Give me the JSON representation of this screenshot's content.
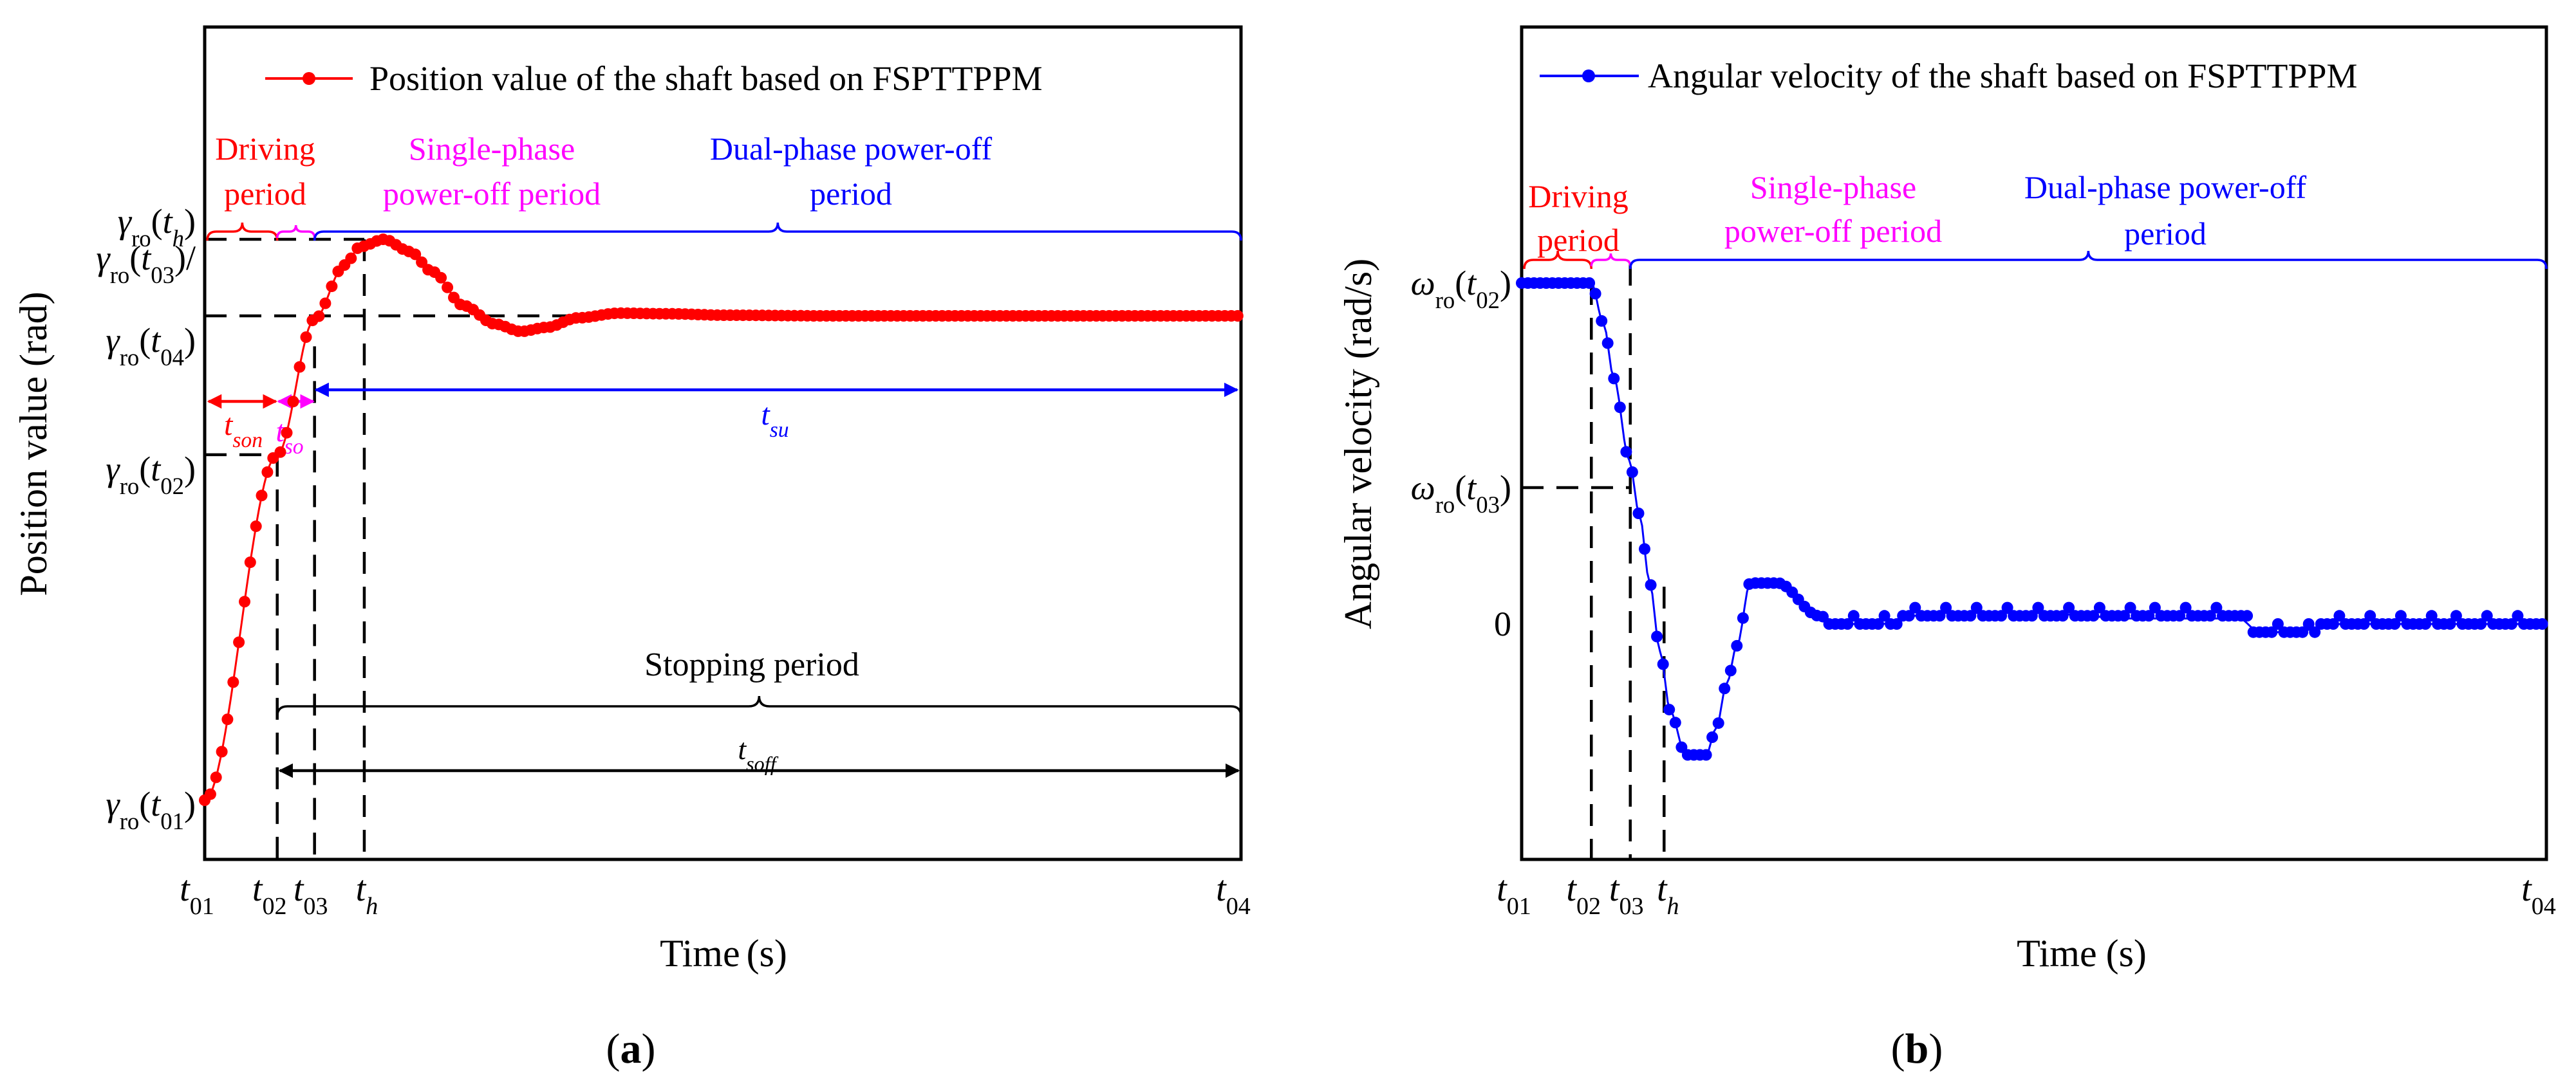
{
  "chart_data": [
    {
      "type": "line",
      "panel_label": "(a)",
      "panel_letter": "a",
      "xlabel": "Time",
      "xunit": "(s)",
      "ylabel": "Position value (rad)",
      "x_ticks": [
        "t01",
        "t02",
        "t03",
        "th",
        "t04"
      ],
      "y_ticks": [
        "γro(th)",
        "γro(t03)/",
        "γro(t04)",
        "γro(t02)",
        "γro(t01)"
      ],
      "xlim": [
        0,
        100
      ],
      "ylim": [
        0,
        100
      ],
      "legend": "Position value of the shaft based on FSPTTPPM",
      "series": [
        {
          "name": "Position value of the shaft based on FSPTTPPM",
          "color": "#ff0000",
          "x": [
            0,
            7,
            10.6,
            13.5,
            15,
            17.3,
            19.8,
            22,
            25,
            28,
            30.5,
            33,
            36,
            40,
            45,
            50,
            60,
            70,
            80,
            90,
            100
          ],
          "y": [
            7,
            58,
            78,
            86,
            88.7,
            89.8,
            88,
            85,
            80,
            77.3,
            76.2,
            76.8,
            78.2,
            78.9,
            78.8,
            78.6,
            78.5,
            78.5,
            78.5,
            78.5,
            78.5
          ]
        }
      ],
      "markers": {
        "t01": 0,
        "t02": 7,
        "t03": 10.6,
        "th": 15.4,
        "t04": 100,
        "gamma_th": 89.8,
        "gamma_t04": 78.5,
        "gamma_t02": 58,
        "gamma_t01": 7
      },
      "periods": [
        {
          "line1": "Driving",
          "line2": "period",
          "color": "#ff0000"
        },
        {
          "line1": "Single-phase",
          "line2": "power-off period",
          "color": "#ff00ff"
        },
        {
          "line1": "Dual-phase power-off",
          "line2": "period",
          "color": "#0000ff"
        }
      ],
      "time_spans": [
        {
          "label": "tson",
          "color": "#ff0000"
        },
        {
          "label": "tso",
          "color": "#ff00ff"
        },
        {
          "label": "tsu",
          "color": "#0000ff"
        }
      ],
      "stopping": {
        "label": "Stopping period",
        "span_label": "tsoff",
        "color": "#000000"
      }
    },
    {
      "type": "line",
      "panel_label": "(b)",
      "panel_letter": "b",
      "xlabel": "Time",
      "xunit": "(s)",
      "ylabel": "Angular velocity (rad/s)",
      "x_ticks": [
        "t01",
        "t02",
        "t03",
        "th",
        "t04"
      ],
      "y_ticks": [
        "ωro(t02)",
        "ωro(t03)",
        "0"
      ],
      "xlim": [
        0,
        100
      ],
      "ylim": [
        -100,
        150
      ],
      "legend": "Angular velocity of the shaft based on FSPTTPPM",
      "series": [
        {
          "name": "Angular velocity of the shaft based on FSPTTPPM",
          "color": "#0000ff",
          "x": [
            0,
            3,
            6.8,
            8,
            9,
            10.5,
            11.5,
            12.5,
            13.5,
            14.5,
            16,
            18,
            19,
            20,
            21,
            22.3,
            25,
            29,
            31,
            35,
            40,
            50,
            60,
            70,
            72,
            75,
            80,
            90,
            100
          ],
          "y": [
            125,
            125,
            125,
            110,
            90,
            60,
            40,
            15,
            -10,
            -32,
            -48,
            -48,
            -38,
            -22,
            -8,
            15,
            15,
            3,
            0,
            0,
            4,
            4,
            2,
            2,
            -3,
            -3,
            0,
            0,
            0
          ]
        }
      ],
      "markers": {
        "t01": 0,
        "t02": 6.8,
        "t03": 10.6,
        "th": 13.9,
        "t04": 100,
        "omega_t02": 125,
        "omega_t03": 50,
        "zero": 0
      },
      "periods": [
        {
          "line1": "Driving",
          "line2": "period",
          "color": "#ff0000"
        },
        {
          "line1": "Single-phase",
          "line2": "power-off period",
          "color": "#ff00ff"
        },
        {
          "line1": "Dual-phase power-off",
          "line2": "period",
          "color": "#0000ff"
        }
      ]
    }
  ]
}
